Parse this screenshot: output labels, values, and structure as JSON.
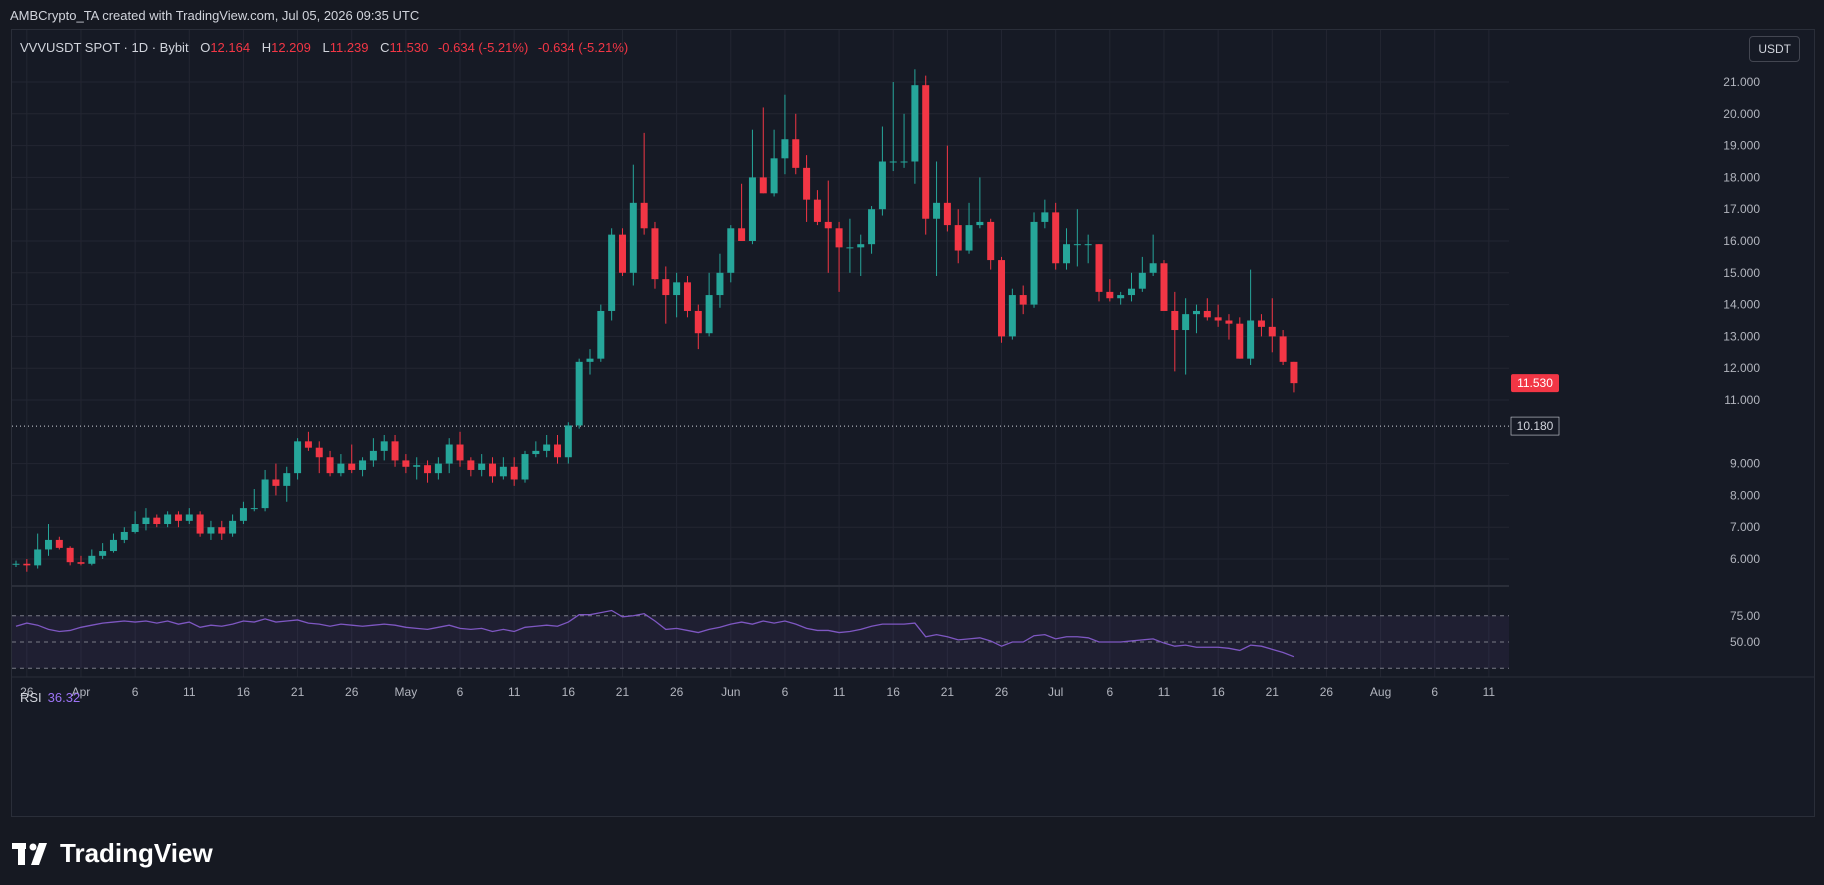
{
  "header": {
    "credit": "AMBCrypto_TA created with TradingView.com, Jul 05, 2026 09:35 UTC"
  },
  "legend": {
    "symbol": "VVVUSDT SPOT · 1D · Bybit",
    "open_label": "O",
    "open": "12.164",
    "high_label": "H",
    "high": "12.209",
    "low_label": "L",
    "low": "11.239",
    "close_label": "C",
    "close": "11.530",
    "change": "-0.634 (-5.21%)",
    "change2": "-0.634 (-5.21%)"
  },
  "currency_button": "USDT",
  "rsi_legend": {
    "label": "RSI",
    "value": "36.32"
  },
  "footer": {
    "brand": "TradingView"
  },
  "colors": {
    "up": "#26a69a",
    "down": "#f23645",
    "rsi_line": "#7e57c2",
    "rsi_band": "#7e57c2",
    "grid": "#232632"
  },
  "chart_data": {
    "type": "candlestick",
    "y_ticks": [
      "21.000",
      "20.000",
      "19.000",
      "18.000",
      "17.000",
      "16.000",
      "15.000",
      "14.000",
      "13.000",
      "12.000",
      "11.000",
      "9.000",
      "8.000",
      "7.000",
      "6.000"
    ],
    "price_line": {
      "value": 10.18,
      "label": "10.180"
    },
    "last_price": {
      "value": 11.53,
      "label": "11.530"
    },
    "x_ticks": [
      "26",
      "Apr",
      "6",
      "11",
      "16",
      "21",
      "26",
      "May",
      "6",
      "11",
      "16",
      "21",
      "26",
      "Jun",
      "6",
      "11",
      "16",
      "21",
      "26",
      "Jul",
      "6",
      "11",
      "16",
      "21",
      "26",
      "Aug",
      "6",
      "11"
    ],
    "candles": [
      [
        5.85,
        5.95,
        5.75,
        5.85
      ],
      [
        5.85,
        6.0,
        5.6,
        5.8
      ],
      [
        5.8,
        6.8,
        5.7,
        6.3
      ],
      [
        6.3,
        7.1,
        6.1,
        6.6
      ],
      [
        6.6,
        6.7,
        6.3,
        6.35
      ],
      [
        6.35,
        6.4,
        5.8,
        5.9
      ],
      [
        5.9,
        6.1,
        5.8,
        5.85
      ],
      [
        5.85,
        6.3,
        5.8,
        6.1
      ],
      [
        6.1,
        6.5,
        6.0,
        6.25
      ],
      [
        6.25,
        6.8,
        6.2,
        6.6
      ],
      [
        6.6,
        7.0,
        6.5,
        6.85
      ],
      [
        6.85,
        7.5,
        6.8,
        7.1
      ],
      [
        7.1,
        7.6,
        6.9,
        7.3
      ],
      [
        7.3,
        7.4,
        7.0,
        7.1
      ],
      [
        7.1,
        7.5,
        7.0,
        7.4
      ],
      [
        7.4,
        7.5,
        7.0,
        7.2
      ],
      [
        7.2,
        7.6,
        7.1,
        7.4
      ],
      [
        7.4,
        7.5,
        6.7,
        6.8
      ],
      [
        6.8,
        7.2,
        6.6,
        7.0
      ],
      [
        7.0,
        7.2,
        6.6,
        6.8
      ],
      [
        6.8,
        7.4,
        6.7,
        7.2
      ],
      [
        7.2,
        7.8,
        7.1,
        7.6
      ],
      [
        7.6,
        8.2,
        7.5,
        7.6
      ],
      [
        7.6,
        8.8,
        7.5,
        8.5
      ],
      [
        8.5,
        9.0,
        8.0,
        8.3
      ],
      [
        8.3,
        8.9,
        7.8,
        8.7
      ],
      [
        8.7,
        9.8,
        8.5,
        9.7
      ],
      [
        9.7,
        10.0,
        9.4,
        9.5
      ],
      [
        9.5,
        9.7,
        8.7,
        9.2
      ],
      [
        9.2,
        9.4,
        8.6,
        8.7
      ],
      [
        8.7,
        9.3,
        8.6,
        9.0
      ],
      [
        9.0,
        9.6,
        8.7,
        8.8
      ],
      [
        8.8,
        9.2,
        8.6,
        9.1
      ],
      [
        9.1,
        9.8,
        8.9,
        9.4
      ],
      [
        9.4,
        9.9,
        9.1,
        9.7
      ],
      [
        9.7,
        9.9,
        8.9,
        9.1
      ],
      [
        9.1,
        9.3,
        8.7,
        8.9
      ],
      [
        8.9,
        9.2,
        8.5,
        8.95
      ],
      [
        8.95,
        9.1,
        8.4,
        8.7
      ],
      [
        8.7,
        9.2,
        8.5,
        9.0
      ],
      [
        9.0,
        9.8,
        8.7,
        9.6
      ],
      [
        9.6,
        10.0,
        8.9,
        9.1
      ],
      [
        9.1,
        9.2,
        8.6,
        8.8
      ],
      [
        8.8,
        9.3,
        8.6,
        9.0
      ],
      [
        9.0,
        9.2,
        8.4,
        8.6
      ],
      [
        8.6,
        9.2,
        8.5,
        8.9
      ],
      [
        8.9,
        9.2,
        8.3,
        8.5
      ],
      [
        8.5,
        9.4,
        8.4,
        9.3
      ],
      [
        9.3,
        9.7,
        9.2,
        9.4
      ],
      [
        9.4,
        9.9,
        9.2,
        9.6
      ],
      [
        9.6,
        9.9,
        9.0,
        9.2
      ],
      [
        9.2,
        10.3,
        9.0,
        10.2
      ],
      [
        10.2,
        12.3,
        10.1,
        12.2
      ],
      [
        12.2,
        12.6,
        11.8,
        12.3
      ],
      [
        12.3,
        14.0,
        12.2,
        13.8
      ],
      [
        13.8,
        16.4,
        13.5,
        16.2
      ],
      [
        16.2,
        16.4,
        14.9,
        15.0
      ],
      [
        15.0,
        18.4,
        14.6,
        17.2
      ],
      [
        17.2,
        19.4,
        16.2,
        16.4
      ],
      [
        16.4,
        16.6,
        14.5,
        14.8
      ],
      [
        14.8,
        15.2,
        13.4,
        14.3
      ],
      [
        14.3,
        15.0,
        13.6,
        14.7
      ],
      [
        14.7,
        14.9,
        13.6,
        13.8
      ],
      [
        13.8,
        14.0,
        12.6,
        13.1
      ],
      [
        13.1,
        15.0,
        13.0,
        14.3
      ],
      [
        14.3,
        15.6,
        13.9,
        15.0
      ],
      [
        15.0,
        16.5,
        14.7,
        16.4
      ],
      [
        16.4,
        17.8,
        16.0,
        16.0
      ],
      [
        16.0,
        19.5,
        15.9,
        18.0
      ],
      [
        18.0,
        20.2,
        17.5,
        17.5
      ],
      [
        17.5,
        19.5,
        17.4,
        18.6
      ],
      [
        18.6,
        20.6,
        18.1,
        19.2
      ],
      [
        19.2,
        20.0,
        18.1,
        18.3
      ],
      [
        18.3,
        18.7,
        16.6,
        17.3
      ],
      [
        17.3,
        17.6,
        16.5,
        16.6
      ],
      [
        16.6,
        17.9,
        15.0,
        16.4
      ],
      [
        16.4,
        16.6,
        14.4,
        15.8
      ],
      [
        15.8,
        16.7,
        15.0,
        15.8
      ],
      [
        15.8,
        16.2,
        14.9,
        15.9
      ],
      [
        15.9,
        17.1,
        15.6,
        17.0
      ],
      [
        17.0,
        19.6,
        16.8,
        18.5
      ],
      [
        18.5,
        21.0,
        18.2,
        18.5
      ],
      [
        18.5,
        20.0,
        18.3,
        18.5
      ],
      [
        18.5,
        21.4,
        17.8,
        20.9
      ],
      [
        20.9,
        21.2,
        16.2,
        16.7
      ],
      [
        16.7,
        18.5,
        14.9,
        17.2
      ],
      [
        17.2,
        19.0,
        16.3,
        16.5
      ],
      [
        16.5,
        17.0,
        15.3,
        15.7
      ],
      [
        15.7,
        17.2,
        15.6,
        16.5
      ],
      [
        16.5,
        18.0,
        16.4,
        16.6
      ],
      [
        16.6,
        16.7,
        15.1,
        15.4
      ],
      [
        15.4,
        15.5,
        12.8,
        13.0
      ],
      [
        13.0,
        14.5,
        12.9,
        14.3
      ],
      [
        14.3,
        14.6,
        13.7,
        14.0
      ],
      [
        14.0,
        16.9,
        13.9,
        16.6
      ],
      [
        16.6,
        17.3,
        16.4,
        16.9
      ],
      [
        16.9,
        17.2,
        15.1,
        15.3
      ],
      [
        15.3,
        16.4,
        15.1,
        15.9
      ],
      [
        15.9,
        17.0,
        15.2,
        15.9
      ],
      [
        15.9,
        16.2,
        15.3,
        15.9
      ],
      [
        15.9,
        15.9,
        14.1,
        14.4
      ],
      [
        14.4,
        14.8,
        14.1,
        14.2
      ],
      [
        14.2,
        14.4,
        14.0,
        14.3
      ],
      [
        14.3,
        15.0,
        14.1,
        14.5
      ],
      [
        14.5,
        15.5,
        14.4,
        15.0
      ],
      [
        15.0,
        16.2,
        14.9,
        15.3
      ],
      [
        15.3,
        15.4,
        13.9,
        13.8
      ],
      [
        13.8,
        14.4,
        11.9,
        13.2
      ],
      [
        13.2,
        14.2,
        11.8,
        13.7
      ],
      [
        13.7,
        14.0,
        13.1,
        13.8
      ],
      [
        13.8,
        14.2,
        13.5,
        13.6
      ],
      [
        13.6,
        14.0,
        13.3,
        13.5
      ],
      [
        13.5,
        13.7,
        12.9,
        13.4
      ],
      [
        13.4,
        13.6,
        12.3,
        12.3
      ],
      [
        12.3,
        15.1,
        12.1,
        13.5
      ],
      [
        13.5,
        13.7,
        13.0,
        13.3
      ],
      [
        13.3,
        14.2,
        12.5,
        13.0
      ],
      [
        13.0,
        13.2,
        12.1,
        12.2
      ],
      [
        12.2,
        12.2,
        11.24,
        11.53
      ]
    ],
    "rsi": {
      "levels": [
        "75.00",
        "50.00"
      ],
      "values": [
        65,
        68,
        66,
        62,
        60,
        61,
        64,
        66,
        68,
        69,
        70,
        69,
        70,
        68,
        70,
        67,
        69,
        64,
        66,
        65,
        67,
        70,
        69,
        72,
        69,
        70,
        71,
        68,
        67,
        65,
        67,
        66,
        65,
        66,
        67,
        66,
        64,
        63,
        62,
        64,
        66,
        63,
        62,
        63,
        60,
        62,
        60,
        64,
        65,
        66,
        65,
        69,
        76,
        76,
        78,
        80,
        74,
        75,
        77,
        70,
        62,
        63,
        61,
        59,
        62,
        64,
        67,
        69,
        67,
        70,
        68,
        70,
        67,
        63,
        61,
        61,
        59,
        60,
        62,
        65,
        67,
        67,
        67,
        68,
        55,
        57,
        55,
        52,
        53,
        54,
        51,
        46,
        50,
        50,
        56,
        57,
        53,
        55,
        55,
        54,
        50,
        50,
        50,
        51,
        52,
        53,
        49,
        46,
        47,
        45,
        45,
        45,
        44,
        42,
        47,
        46,
        43,
        40,
        36
      ]
    }
  }
}
